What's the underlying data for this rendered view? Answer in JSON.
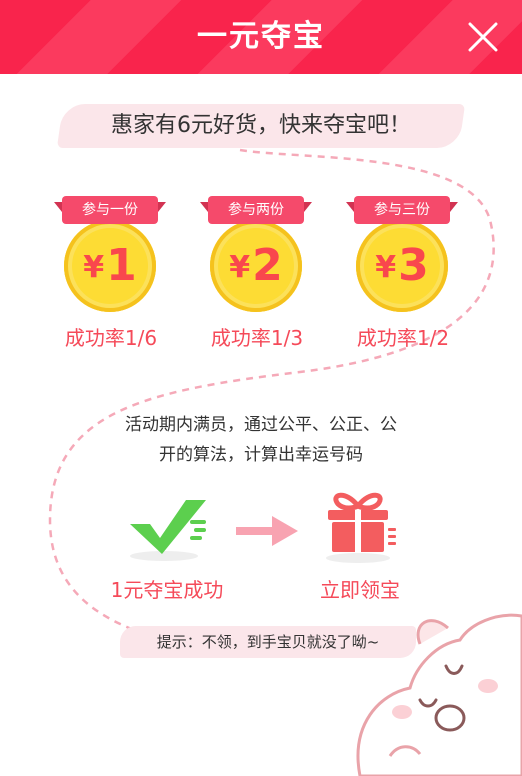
{
  "header": {
    "title": "一元夺宝"
  },
  "slogan": "惠家有6元好货，快来夺宝吧！",
  "tiers": [
    {
      "ribbon": "参与一份",
      "yen": "¥",
      "amount": "1",
      "rate": "成功率1/6"
    },
    {
      "ribbon": "参与两份",
      "yen": "¥",
      "amount": "2",
      "rate": "成功率1/3"
    },
    {
      "ribbon": "参与三份",
      "yen": "¥",
      "amount": "3",
      "rate": "成功率1/2"
    }
  ],
  "description": {
    "line1": "活动期内满员，通过公平、公正、公",
    "line2": "开的算法，计算出幸运号码"
  },
  "steps": {
    "success_label": "1元夺宝成功",
    "claim_label": "立即领宝"
  },
  "tip": "提示：不领，到手宝贝就没了呦~",
  "colors": {
    "header_red": "#f9244c",
    "accent_red": "#f54a59",
    "coin_yellow": "#fddc34",
    "check_green": "#5ccf4e"
  }
}
